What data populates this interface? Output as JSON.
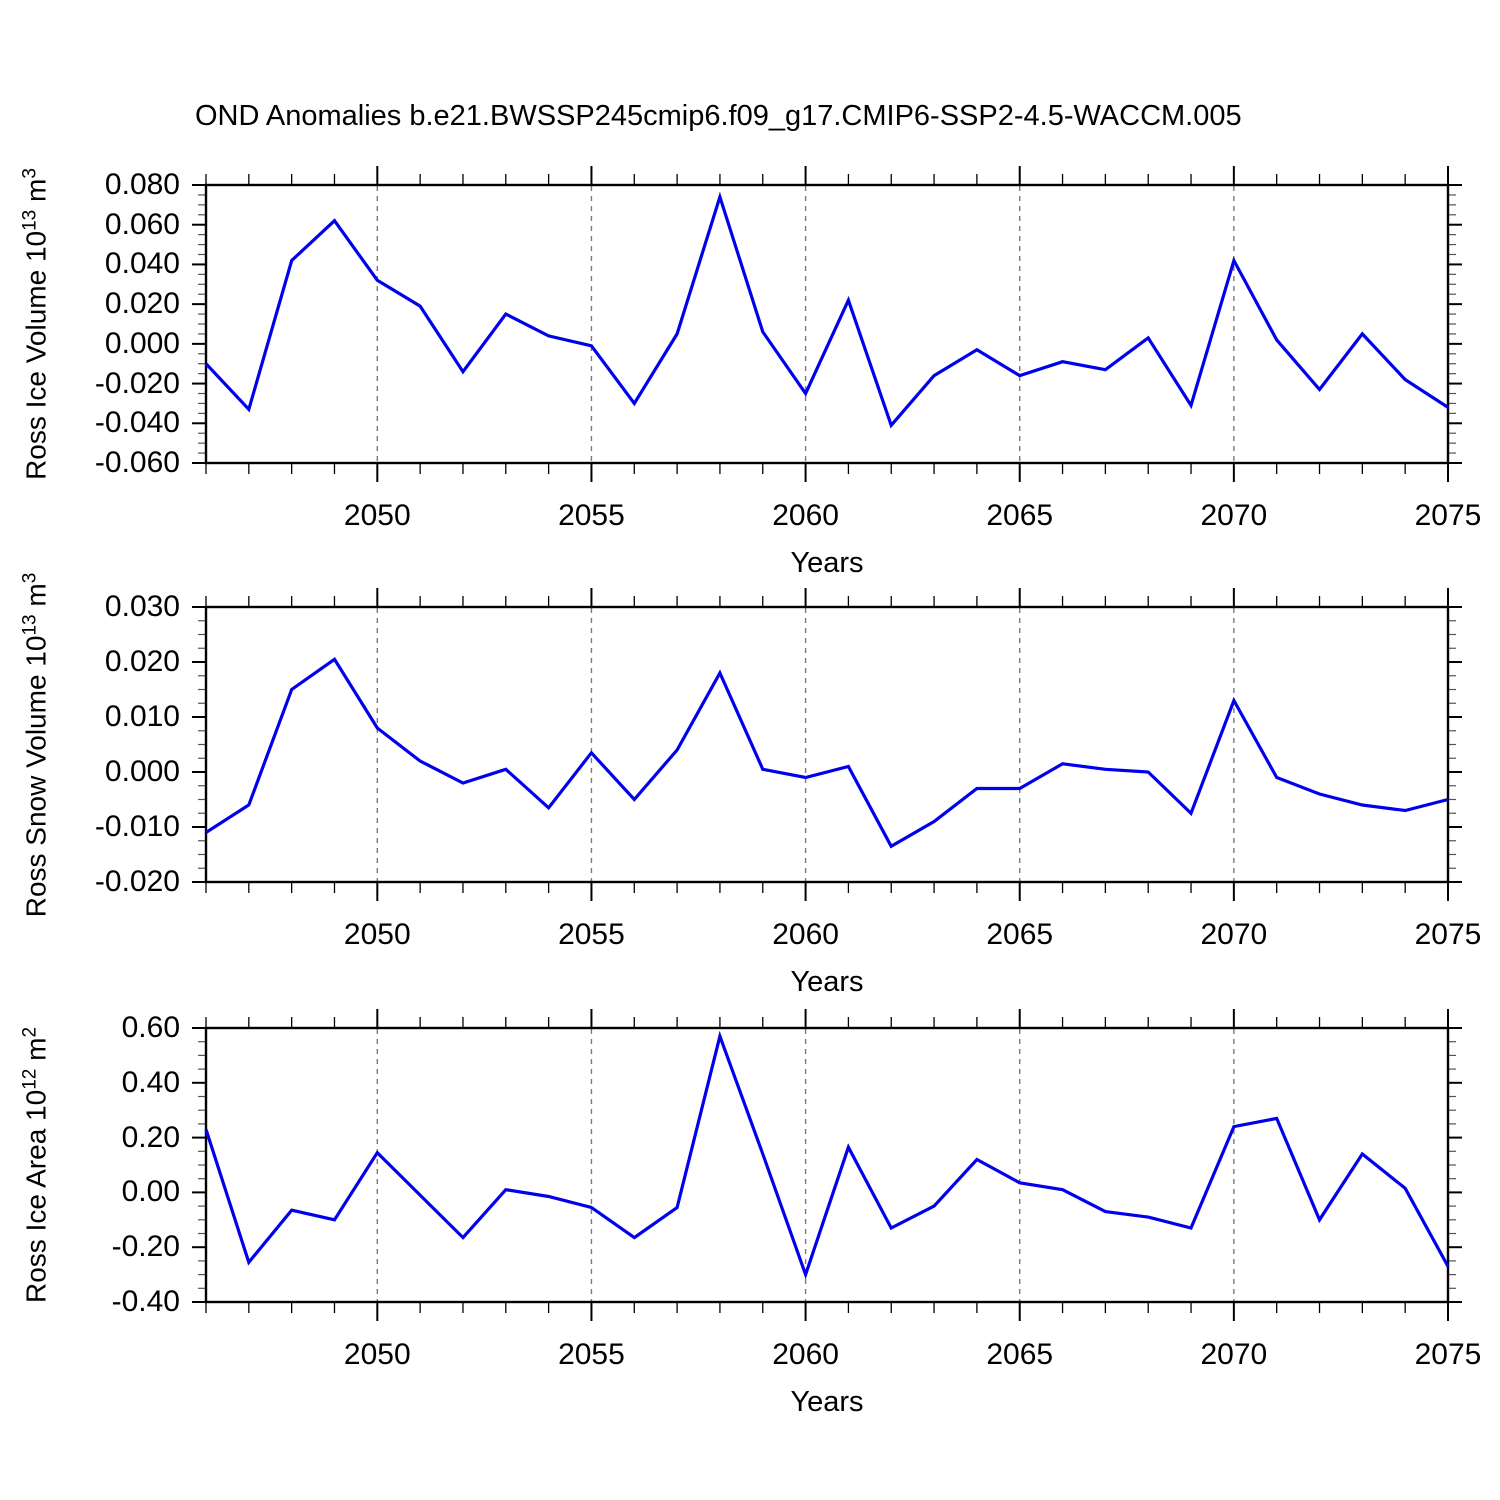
{
  "title": "OND Anomalies b.e21.BWSSP245cmip6.f09_g17.CMIP6-SSP2-4.5-WACCM.005",
  "colors": {
    "line": "#0000ee",
    "frame": "#000000",
    "gridline": "#7a7a7a",
    "background": "#ffffff"
  },
  "x_axis": {
    "label": "Years",
    "start": 2046,
    "end": 2075,
    "major_ticks": [
      2050,
      2055,
      2060,
      2065,
      2070,
      2075
    ],
    "tick_labels": [
      "2050",
      "2055",
      "2060",
      "2065",
      "2070",
      "2075"
    ],
    "gridline_years": [
      2050,
      2055,
      2060,
      2065,
      2070
    ]
  },
  "chart_data": [
    {
      "type": "line",
      "ylabel": "Ross Ice Volume 10^13 m^3",
      "ylabel_parts": {
        "main": "Ross Ice Volume 10",
        "exp": "13",
        "unit": " m",
        "unit_exp": "3"
      },
      "ylim": [
        -0.06,
        0.08
      ],
      "ytick_values": [
        0.08,
        0.06,
        0.04,
        0.02,
        0.0,
        -0.02,
        -0.04,
        -0.06
      ],
      "ytick_labels": [
        "0.080",
        "0.060",
        "0.040",
        "0.020",
        "0.000",
        "-0.020",
        "-0.040",
        "-0.060"
      ],
      "y_minor_step": 0.005,
      "legend": "none",
      "grid": "vertical-dashed",
      "x": [
        2046,
        2047,
        2048,
        2049,
        2050,
        2051,
        2052,
        2053,
        2054,
        2055,
        2056,
        2057,
        2058,
        2059,
        2060,
        2061,
        2062,
        2063,
        2064,
        2065,
        2066,
        2067,
        2068,
        2069,
        2070,
        2071,
        2072,
        2073,
        2074,
        2075
      ],
      "values": [
        -0.01,
        -0.033,
        0.042,
        0.062,
        0.032,
        0.019,
        -0.014,
        0.015,
        0.004,
        -0.001,
        -0.03,
        0.005,
        0.074,
        0.006,
        -0.025,
        0.022,
        -0.041,
        -0.016,
        -0.003,
        -0.016,
        -0.009,
        -0.013,
        0.003,
        -0.031,
        0.042,
        0.002,
        -0.023,
        0.005,
        -0.018,
        -0.032
      ]
    },
    {
      "type": "line",
      "ylabel": "Ross Snow Volume 10^13 m^3",
      "ylabel_parts": {
        "main": "Ross Snow Volume 10",
        "exp": "13",
        "unit": " m",
        "unit_exp": "3"
      },
      "ylim": [
        -0.02,
        0.03
      ],
      "ytick_values": [
        0.03,
        0.02,
        0.01,
        0.0,
        -0.01,
        -0.02
      ],
      "ytick_labels": [
        "0.030",
        "0.020",
        "0.010",
        "0.000",
        "-0.010",
        "-0.020"
      ],
      "y_minor_step": 0.0025,
      "legend": "none",
      "grid": "vertical-dashed",
      "x": [
        2046,
        2047,
        2048,
        2049,
        2050,
        2051,
        2052,
        2053,
        2054,
        2055,
        2056,
        2057,
        2058,
        2059,
        2060,
        2061,
        2062,
        2063,
        2064,
        2065,
        2066,
        2067,
        2068,
        2069,
        2070,
        2071,
        2072,
        2073,
        2074,
        2075
      ],
      "values": [
        -0.011,
        -0.006,
        0.015,
        0.0205,
        0.008,
        0.002,
        -0.002,
        0.0005,
        -0.0065,
        0.0035,
        -0.005,
        0.004,
        0.018,
        0.0005,
        -0.001,
        0.001,
        -0.0135,
        -0.009,
        -0.003,
        -0.003,
        0.0015,
        0.0005,
        0.0,
        -0.0075,
        0.013,
        -0.001,
        -0.004,
        -0.006,
        -0.007,
        -0.005
      ]
    },
    {
      "type": "line",
      "ylabel": "Ross Ice Area 10^12 m^2",
      "ylabel_parts": {
        "main": "Ross Ice Area 10",
        "exp": "12",
        "unit": " m",
        "unit_exp": "2"
      },
      "ylim": [
        -0.4,
        0.6
      ],
      "ytick_values": [
        0.6,
        0.4,
        0.2,
        0.0,
        -0.2,
        -0.4
      ],
      "ytick_labels": [
        "0.60",
        "0.40",
        "0.20",
        "0.00",
        "-0.20",
        "-0.40"
      ],
      "y_minor_step": 0.05,
      "legend": "none",
      "grid": "vertical-dashed",
      "x": [
        2046,
        2047,
        2048,
        2049,
        2050,
        2051,
        2052,
        2053,
        2054,
        2055,
        2056,
        2057,
        2058,
        2059,
        2060,
        2061,
        2062,
        2063,
        2064,
        2065,
        2066,
        2067,
        2068,
        2069,
        2070,
        2071,
        2072,
        2073,
        2074,
        2075
      ],
      "values": [
        0.23,
        -0.255,
        -0.065,
        -0.1,
        0.145,
        -0.01,
        -0.165,
        0.01,
        -0.015,
        -0.055,
        -0.165,
        -0.055,
        0.57,
        0.14,
        -0.3,
        0.165,
        -0.13,
        -0.05,
        0.12,
        0.035,
        0.01,
        -0.07,
        -0.09,
        -0.13,
        0.24,
        0.27,
        -0.1,
        0.14,
        0.015,
        -0.27
      ]
    }
  ]
}
